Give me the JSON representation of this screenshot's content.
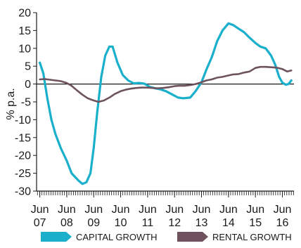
{
  "chart_data": {
    "type": "line",
    "title": "",
    "xlabel": "",
    "ylabel": "% p.a.",
    "ylim": [
      -30,
      20
    ],
    "xlim": [
      2007.3,
      2016.85
    ],
    "yticks": [
      "20",
      "15",
      "10",
      "5",
      "0",
      "-5",
      "-10",
      "-15",
      "-20",
      "-25",
      "-30"
    ],
    "xticks": [
      {
        "x": 2007.42,
        "line1": "Jun",
        "line2": "07"
      },
      {
        "x": 2008.42,
        "line1": "Jun",
        "line2": "08"
      },
      {
        "x": 2009.42,
        "line1": "Jun",
        "line2": "09"
      },
      {
        "x": 2010.42,
        "line1": "Jun",
        "line2": "10"
      },
      {
        "x": 2011.42,
        "line1": "Jun",
        "line2": "11"
      },
      {
        "x": 2012.42,
        "line1": "Jun",
        "line2": "12"
      },
      {
        "x": 2013.42,
        "line1": "Jun",
        "line2": "13"
      },
      {
        "x": 2014.42,
        "line1": "Jun",
        "line2": "14"
      },
      {
        "x": 2015.42,
        "line1": "Jun",
        "line2": "15"
      },
      {
        "x": 2016.42,
        "line1": "Jun",
        "line2": "16"
      }
    ],
    "legend_position": "bottom",
    "series": [
      {
        "name": "CAPITAL GROWTH",
        "color": "#1ab0cc",
        "points": [
          [
            2007.42,
            6
          ],
          [
            2007.55,
            3
          ],
          [
            2007.7,
            -4
          ],
          [
            2007.85,
            -10
          ],
          [
            2008.0,
            -14
          ],
          [
            2008.2,
            -18
          ],
          [
            2008.42,
            -21.5
          ],
          [
            2008.6,
            -25
          ],
          [
            2008.85,
            -27
          ],
          [
            2009.0,
            -28
          ],
          [
            2009.15,
            -27.5
          ],
          [
            2009.3,
            -25
          ],
          [
            2009.42,
            -18
          ],
          [
            2009.55,
            -8
          ],
          [
            2009.7,
            2
          ],
          [
            2009.85,
            8
          ],
          [
            2010.0,
            10.5
          ],
          [
            2010.12,
            10.5
          ],
          [
            2010.3,
            6
          ],
          [
            2010.5,
            2.5
          ],
          [
            2010.7,
            1
          ],
          [
            2010.9,
            0.2
          ],
          [
            2011.1,
            0.3
          ],
          [
            2011.3,
            0.1
          ],
          [
            2011.5,
            -0.8
          ],
          [
            2011.7,
            -1.2
          ],
          [
            2011.9,
            -1.5
          ],
          [
            2012.1,
            -2
          ],
          [
            2012.35,
            -3
          ],
          [
            2012.55,
            -3.8
          ],
          [
            2012.75,
            -4
          ],
          [
            2013.0,
            -3.8
          ],
          [
            2013.2,
            -2
          ],
          [
            2013.42,
            0.5
          ],
          [
            2013.6,
            4
          ],
          [
            2013.8,
            7.5
          ],
          [
            2014.0,
            12
          ],
          [
            2014.2,
            15
          ],
          [
            2014.42,
            17
          ],
          [
            2014.6,
            16.5
          ],
          [
            2014.8,
            15.5
          ],
          [
            2015.0,
            14.5
          ],
          [
            2015.2,
            13
          ],
          [
            2015.42,
            11.5
          ],
          [
            2015.6,
            10.5
          ],
          [
            2015.8,
            10
          ],
          [
            2016.0,
            8
          ],
          [
            2016.15,
            5.5
          ],
          [
            2016.3,
            2
          ],
          [
            2016.42,
            0.4
          ],
          [
            2016.55,
            -0.2
          ],
          [
            2016.65,
            0
          ],
          [
            2016.75,
            1
          ]
        ]
      },
      {
        "name": "RENTAL GROWTH",
        "color": "#6e535f",
        "points": [
          [
            2007.42,
            1.3
          ],
          [
            2007.6,
            1.4
          ],
          [
            2007.8,
            1.2
          ],
          [
            2008.0,
            1.0
          ],
          [
            2008.2,
            0.8
          ],
          [
            2008.42,
            0.3
          ],
          [
            2008.6,
            -0.5
          ],
          [
            2008.8,
            -1.8
          ],
          [
            2009.0,
            -3
          ],
          [
            2009.2,
            -4
          ],
          [
            2009.42,
            -4.6
          ],
          [
            2009.6,
            -5
          ],
          [
            2009.8,
            -4.6
          ],
          [
            2010.0,
            -3.8
          ],
          [
            2010.2,
            -2.8
          ],
          [
            2010.42,
            -2
          ],
          [
            2010.6,
            -1.6
          ],
          [
            2010.8,
            -1.3
          ],
          [
            2011.0,
            -1.1
          ],
          [
            2011.2,
            -1.0
          ],
          [
            2011.42,
            -1.0
          ],
          [
            2011.6,
            -1.1
          ],
          [
            2011.8,
            -1.2
          ],
          [
            2012.0,
            -1.1
          ],
          [
            2012.2,
            -0.9
          ],
          [
            2012.42,
            -0.6
          ],
          [
            2012.6,
            -0.5
          ],
          [
            2012.8,
            -0.5
          ],
          [
            2013.0,
            -0.3
          ],
          [
            2013.2,
            0
          ],
          [
            2013.42,
            0.5
          ],
          [
            2013.6,
            1
          ],
          [
            2013.8,
            1.3
          ],
          [
            2014.0,
            1.8
          ],
          [
            2014.2,
            2.0
          ],
          [
            2014.42,
            2.4
          ],
          [
            2014.6,
            2.7
          ],
          [
            2014.8,
            2.8
          ],
          [
            2015.0,
            3.2
          ],
          [
            2015.2,
            3.5
          ],
          [
            2015.42,
            4.5
          ],
          [
            2015.6,
            4.8
          ],
          [
            2015.8,
            4.8
          ],
          [
            2016.0,
            4.7
          ],
          [
            2016.2,
            4.6
          ],
          [
            2016.42,
            4.2
          ],
          [
            2016.6,
            3.5
          ],
          [
            2016.75,
            3.8
          ]
        ]
      }
    ]
  }
}
